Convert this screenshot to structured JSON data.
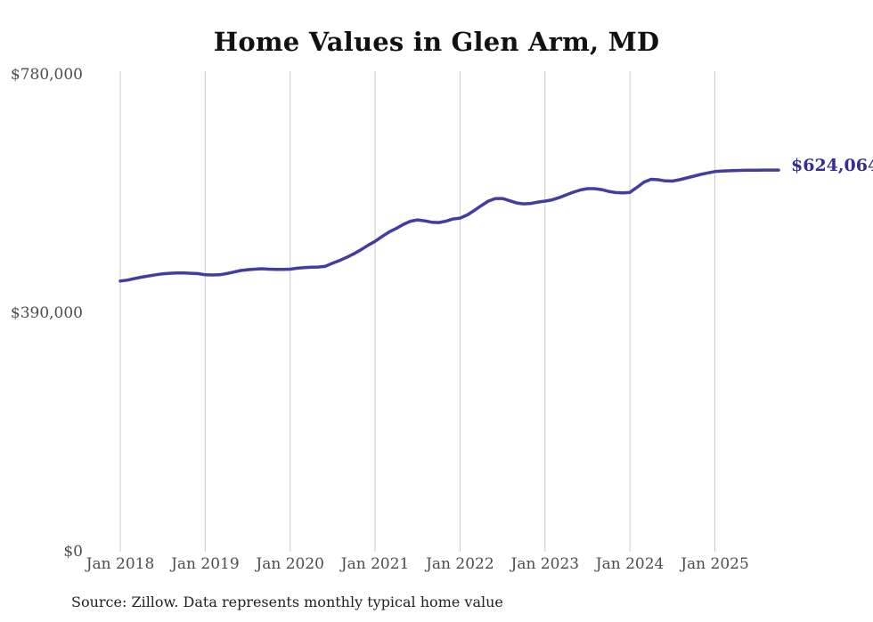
{
  "title": "Home Values in Glen Arm, MD",
  "source": "Source: Zillow. Data represents monthly typical home value",
  "colors": {
    "line": "#433da2",
    "end_label": "#352d96",
    "axis_text": "#4d4d4d",
    "gridline": "#cccccc",
    "title_text": "#111111",
    "source_text": "#222222"
  },
  "chart_data": {
    "type": "line",
    "title": "Home Values in Glen Arm, MD",
    "xlabel": "",
    "ylabel": "",
    "ylim": [
      0,
      780000
    ],
    "y_tick_values": [
      0,
      390000,
      780000
    ],
    "y_tick_labels": [
      "$0",
      "$390,000",
      "$780,000"
    ],
    "x_tick_labels": [
      "Jan 2018",
      "Jan 2019",
      "Jan 2020",
      "Jan 2021",
      "Jan 2022",
      "Jan 2023",
      "Jan 2024",
      "Jan 2025"
    ],
    "grid": "vertical-only",
    "legend": "none",
    "end_label": "$624,064",
    "final_value": 624064,
    "months": [
      "2018-01",
      "2018-02",
      "2018-03",
      "2018-04",
      "2018-05",
      "2018-06",
      "2018-07",
      "2018-08",
      "2018-09",
      "2018-10",
      "2018-11",
      "2018-12",
      "2019-01",
      "2019-02",
      "2019-03",
      "2019-04",
      "2019-05",
      "2019-06",
      "2019-07",
      "2019-08",
      "2019-09",
      "2019-10",
      "2019-11",
      "2019-12",
      "2020-01",
      "2020-02",
      "2020-03",
      "2020-04",
      "2020-05",
      "2020-06",
      "2020-07",
      "2020-08",
      "2020-09",
      "2020-10",
      "2020-11",
      "2020-12",
      "2021-01",
      "2021-02",
      "2021-03",
      "2021-04",
      "2021-05",
      "2021-06",
      "2021-07",
      "2021-08",
      "2021-09",
      "2021-10",
      "2021-11",
      "2021-12",
      "2022-01",
      "2022-02",
      "2022-03",
      "2022-04",
      "2022-05",
      "2022-06",
      "2022-07",
      "2022-08",
      "2022-09",
      "2022-10",
      "2022-11",
      "2022-12",
      "2023-01",
      "2023-02",
      "2023-03",
      "2023-04",
      "2023-05",
      "2023-06",
      "2023-07",
      "2023-08",
      "2023-09",
      "2023-10",
      "2023-11",
      "2023-12",
      "2024-01",
      "2024-02",
      "2024-03",
      "2024-04",
      "2024-05",
      "2024-06",
      "2024-07",
      "2024-08",
      "2024-09",
      "2024-10",
      "2024-11",
      "2024-12",
      "2025-01",
      "2025-02",
      "2025-03",
      "2025-04",
      "2025-05",
      "2025-06",
      "2025-07",
      "2025-08",
      "2025-09",
      "2025-10"
    ],
    "values": [
      442400,
      443800,
      446300,
      448700,
      450700,
      452600,
      454100,
      455100,
      455500,
      455500,
      455100,
      454400,
      452600,
      452200,
      452600,
      454500,
      457000,
      459500,
      460900,
      461800,
      462400,
      461800,
      461400,
      461400,
      461800,
      463300,
      464300,
      465000,
      465300,
      466500,
      471600,
      476000,
      481100,
      486900,
      493500,
      500800,
      507400,
      515400,
      522700,
      528500,
      535100,
      540200,
      542400,
      540900,
      538700,
      538000,
      540200,
      543900,
      545300,
      550400,
      557700,
      565800,
      573100,
      577400,
      577400,
      573800,
      570100,
      568700,
      569400,
      571600,
      573100,
      575200,
      578900,
      583300,
      587700,
      591300,
      593500,
      593500,
      592000,
      589100,
      587200,
      586600,
      587400,
      595700,
      604400,
      608800,
      608100,
      606200,
      605900,
      608100,
      611000,
      613900,
      616900,
      619300,
      621500,
      622300,
      622900,
      623300,
      623600,
      623800,
      623900,
      624000,
      624000,
      624064
    ]
  }
}
